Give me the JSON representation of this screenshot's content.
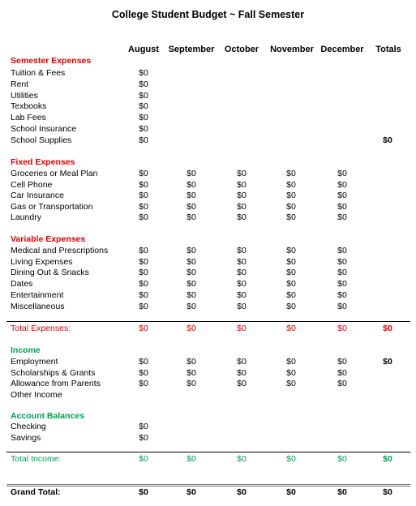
{
  "title": "College Student Budget ~ Fall Semester",
  "columns": [
    "August",
    "September",
    "October",
    "November",
    "December",
    "Totals"
  ],
  "sections": {
    "semester": {
      "heading": "Semester Expenses",
      "rows": [
        {
          "label": "Tuition & Fees",
          "values": [
            "$0",
            "",
            "",
            "",
            "",
            ""
          ]
        },
        {
          "label": "Rent",
          "values": [
            "$0",
            "",
            "",
            "",
            "",
            ""
          ]
        },
        {
          "label": "Utilities",
          "values": [
            "$0",
            "",
            "",
            "",
            "",
            ""
          ]
        },
        {
          "label": "Texbooks",
          "values": [
            "$0",
            "",
            "",
            "",
            "",
            ""
          ]
        },
        {
          "label": "Lab Fees",
          "values": [
            "$0",
            "",
            "",
            "",
            "",
            ""
          ]
        },
        {
          "label": "School Insurance",
          "values": [
            "$0",
            "",
            "",
            "",
            "",
            ""
          ]
        },
        {
          "label": "School Supplies",
          "values": [
            "$0",
            "",
            "",
            "",
            "",
            "$0"
          ]
        }
      ]
    },
    "fixed": {
      "heading": "Fixed Expenses",
      "rows": [
        {
          "label": "Groceries or Meal Plan",
          "values": [
            "$0",
            "$0",
            "$0",
            "$0",
            "$0",
            ""
          ]
        },
        {
          "label": "Cell Phone",
          "values": [
            "$0",
            "$0",
            "$0",
            "$0",
            "$0",
            ""
          ]
        },
        {
          "label": "Car Insurance",
          "values": [
            "$0",
            "$0",
            "$0",
            "$0",
            "$0",
            ""
          ]
        },
        {
          "label": "Gas or Transportation",
          "values": [
            "$0",
            "$0",
            "$0",
            "$0",
            "$0",
            ""
          ]
        },
        {
          "label": "Laundry",
          "values": [
            "$0",
            "$0",
            "$0",
            "$0",
            "$0",
            ""
          ]
        }
      ]
    },
    "variable": {
      "heading": "Variable Expenses",
      "rows": [
        {
          "label": "Medical and Prescriptions",
          "values": [
            "$0",
            "$0",
            "$0",
            "$0",
            "$0",
            ""
          ]
        },
        {
          "label": "Living Expenses",
          "values": [
            "$0",
            "$0",
            "$0",
            "$0",
            "$0",
            ""
          ]
        },
        {
          "label": "Dining Out & Snacks",
          "values": [
            "$0",
            "$0",
            "$0",
            "$0",
            "$0",
            ""
          ]
        },
        {
          "label": "Dates",
          "values": [
            "$0",
            "$0",
            "$0",
            "$0",
            "$0",
            ""
          ]
        },
        {
          "label": "Entertainment",
          "values": [
            "$0",
            "$0",
            "$0",
            "$0",
            "$0",
            ""
          ]
        },
        {
          "label": "Miscellaneous",
          "values": [
            "$0",
            "$0",
            "$0",
            "$0",
            "$0",
            ""
          ]
        }
      ]
    },
    "total_expenses": {
      "label": "Total Expenses:",
      "values": [
        "$0",
        "$0",
        "$0",
        "$0",
        "$0",
        "$0"
      ]
    },
    "income": {
      "heading": "Income",
      "rows": [
        {
          "label": "Employment",
          "values": [
            "$0",
            "$0",
            "$0",
            "$0",
            "$0",
            "$0"
          ]
        },
        {
          "label": "Scholarships & Grants",
          "values": [
            "$0",
            "$0",
            "$0",
            "$0",
            "$0",
            ""
          ]
        },
        {
          "label": "Allowance from Parents",
          "values": [
            "$0",
            "$0",
            "$0",
            "$0",
            "$0",
            ""
          ]
        },
        {
          "label": "Other Income",
          "values": [
            "",
            "",
            "",
            "",
            "",
            ""
          ]
        }
      ]
    },
    "balances": {
      "heading": "Account Balances",
      "rows": [
        {
          "label": "Checking",
          "values": [
            "$0",
            "",
            "",
            "",
            "",
            ""
          ]
        },
        {
          "label": "Savings",
          "values": [
            "$0",
            "",
            "",
            "",
            "",
            ""
          ]
        }
      ]
    },
    "total_income": {
      "label": "Total Income:",
      "values": [
        "$0",
        "$0",
        "$0",
        "$0",
        "$0",
        "$0"
      ]
    },
    "grand_total": {
      "label": "Grand Total:",
      "values": [
        "$0",
        "$0",
        "$0",
        "$0",
        "$0",
        "$0"
      ]
    }
  },
  "colors": {
    "expense_heading": "#e60000",
    "income_heading": "#00a050"
  }
}
